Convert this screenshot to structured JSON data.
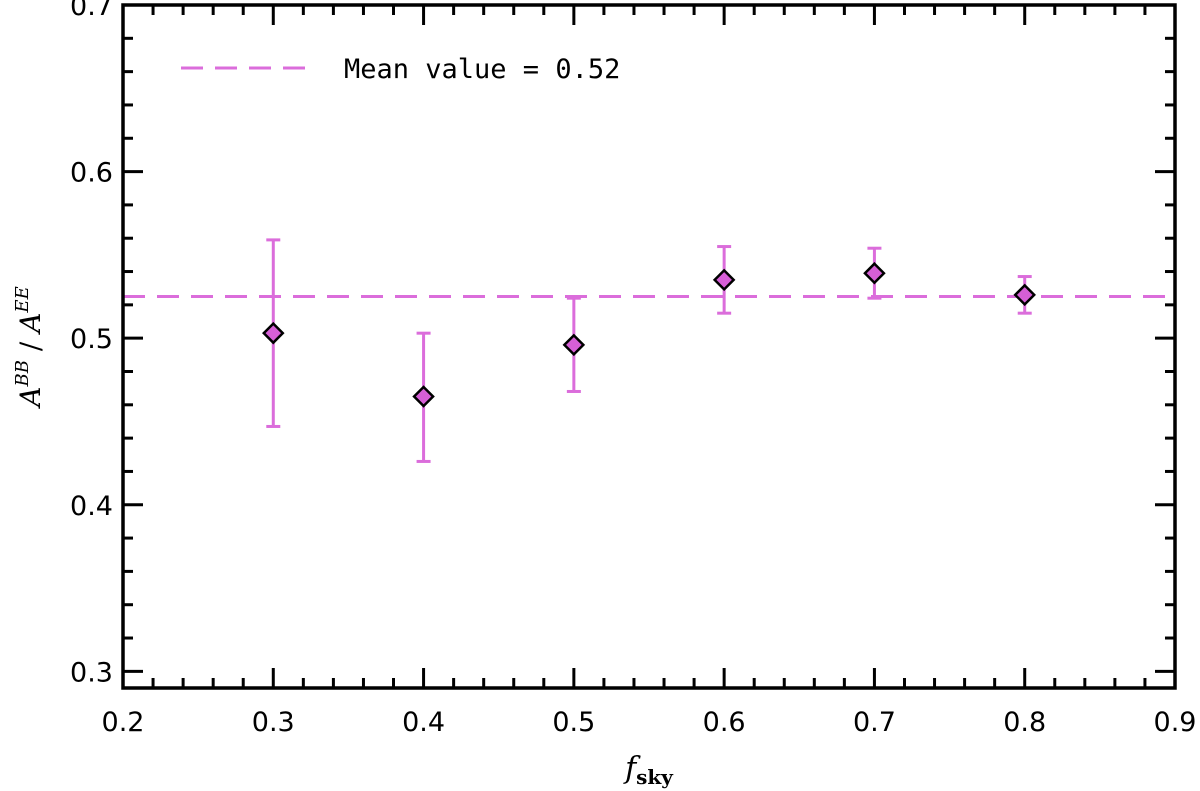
{
  "chart_data": {
    "type": "scatter",
    "title": "",
    "xlabel": {
      "main": "f",
      "sub": "sky"
    },
    "ylabel": {
      "num": "A",
      "num_sup": "BB",
      "sep": " / ",
      "den": "A",
      "den_sup": "EE"
    },
    "xlim": [
      0.2,
      0.9
    ],
    "ylim": [
      0.29,
      0.7
    ],
    "x_ticks": [
      "0.2",
      "0.3",
      "0.4",
      "0.5",
      "0.6",
      "0.7",
      "0.8",
      "0.9"
    ],
    "y_ticks": [
      "0.3",
      "0.4",
      "0.5",
      "0.6",
      "0.7"
    ],
    "grid": false,
    "legend_position": "top-left",
    "mean_line": {
      "value": 0.525,
      "label": "Mean value = 0.52"
    },
    "series": [
      {
        "x": [
          0.3,
          0.4,
          0.5,
          0.6,
          0.7,
          0.8
        ],
        "y": [
          0.503,
          0.465,
          0.496,
          0.535,
          0.539,
          0.526
        ],
        "err_low": [
          0.447,
          0.426,
          0.468,
          0.515,
          0.524,
          0.515
        ],
        "err_high": [
          0.559,
          0.503,
          0.524,
          0.555,
          0.554,
          0.537
        ]
      }
    ],
    "colors": {
      "series": "#db6ddb",
      "marker_fill": "#d65fd6",
      "axis": "#000000"
    }
  }
}
